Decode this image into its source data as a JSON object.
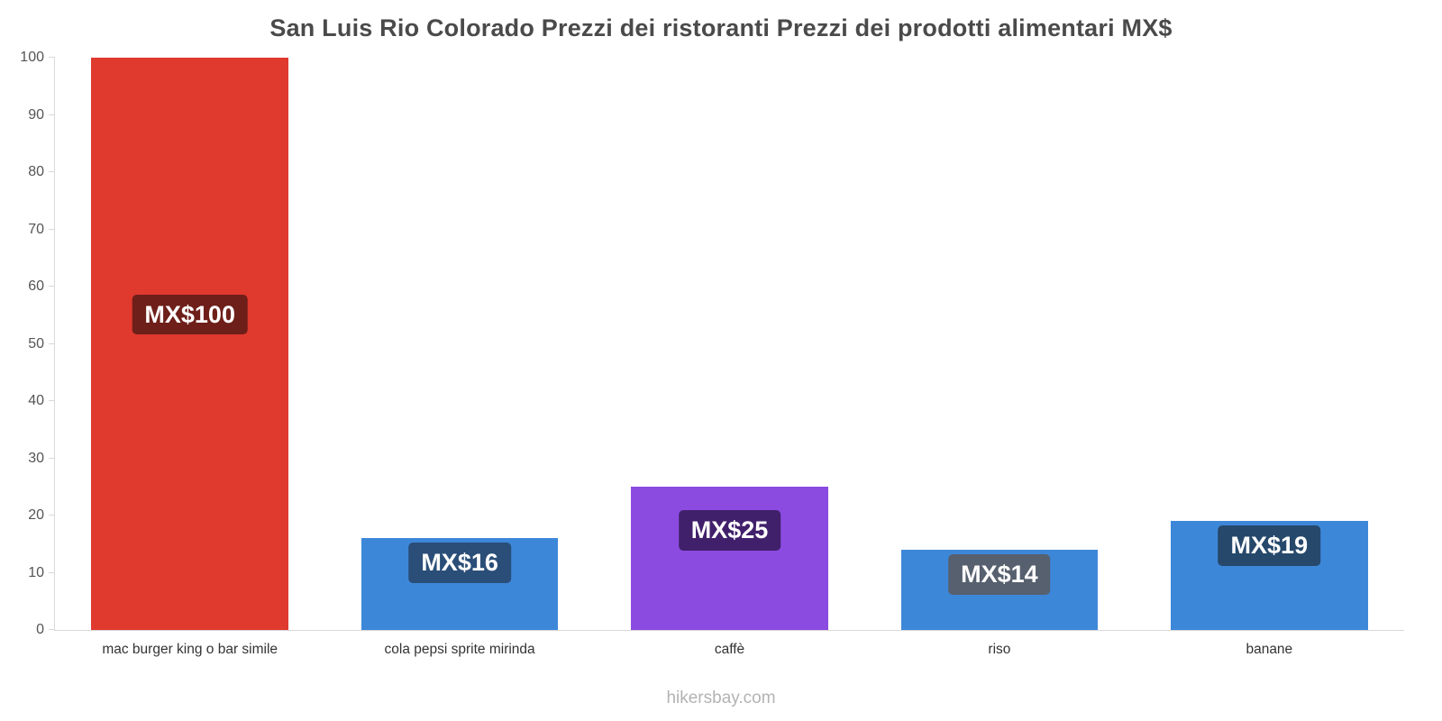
{
  "title": "San Luis Rio Colorado Prezzi dei ristoranti Prezzi dei prodotti alimentari MX$",
  "footer": "hikersbay.com",
  "chart_data": {
    "type": "bar",
    "title": "San Luis Rio Colorado Prezzi dei ristoranti Prezzi dei prodotti alimentari MX$",
    "categories": [
      "mac burger king o bar simile",
      "cola pepsi sprite mirinda",
      "caffè",
      "riso",
      "banane"
    ],
    "values": [
      100,
      16,
      25,
      14,
      19
    ],
    "value_labels": [
      "MX$100",
      "MX$16",
      "MX$25",
      "MX$14",
      "MX$19"
    ],
    "currency": "MX$",
    "bar_colors": [
      "#e0392e",
      "#3d87d9",
      "#8b4be0",
      "#3d87d9",
      "#3d87d9"
    ],
    "label_bg_colors": [
      "#6e1f19",
      "#2a4e78",
      "#41206b",
      "#57606e",
      "#26486b"
    ],
    "xlabel": "",
    "ylabel": "",
    "ylim": [
      0,
      100
    ],
    "yticks": [
      0,
      10,
      20,
      30,
      40,
      50,
      60,
      70,
      80,
      90,
      100
    ],
    "grid": false,
    "legend": false,
    "watermark": "hikersbay.com"
  }
}
